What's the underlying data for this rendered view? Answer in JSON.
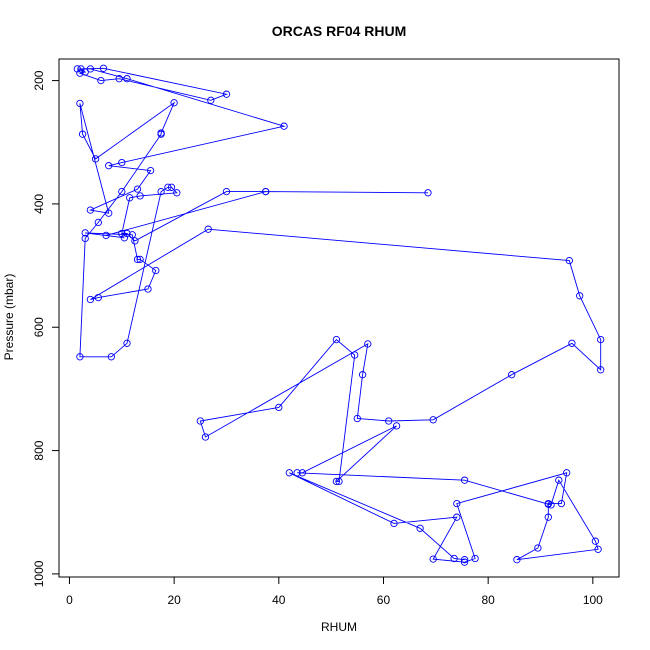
{
  "chart_data": {
    "type": "line",
    "title": "ORCAS RF04 RHUM",
    "xlabel": "RHUM",
    "ylabel": "Pressure (mbar)",
    "xlim": [
      -2,
      105
    ],
    "ylim": [
      1005,
      165
    ],
    "y_inverted": true,
    "markers": "open-circle",
    "grid": false,
    "color": "#0000ff",
    "x_ticks": [
      0,
      20,
      40,
      60,
      80,
      100
    ],
    "y_ticks": [
      200,
      400,
      600,
      800,
      1000
    ],
    "series": [
      {
        "x": [
          1.5,
          6.5,
          30,
          27,
          9.5,
          6,
          2,
          3,
          2.2,
          4,
          11,
          41,
          10,
          7.5,
          15.5,
          13,
          4,
          7.5,
          2,
          2.5,
          5,
          20,
          17.5,
          17.5,
          10,
          5.5,
          3,
          2,
          8,
          11,
          17.5,
          18.8,
          19.5,
          20.5,
          13.5,
          11.5,
          10,
          11,
          12.5,
          30,
          37.5,
          68.5,
          37.5,
          7,
          10.5,
          3,
          12,
          13,
          13.5,
          16.5,
          15,
          5.5,
          4,
          26.5,
          95.5,
          97.5,
          101.5,
          101.5,
          96,
          84.5,
          69.5,
          61,
          55,
          56,
          57,
          26,
          25,
          40,
          51,
          54.5,
          51.5,
          51,
          62.5,
          44.5,
          43.5,
          75.5,
          91.5,
          92,
          93.5,
          100.5,
          101,
          85.5,
          89.5,
          91.5,
          91.5,
          94,
          95,
          74,
          77.5,
          75.5,
          69.5,
          74,
          62,
          42,
          67,
          73.5,
          75.5
        ],
        "y": [
          181,
          180,
          222,
          232,
          197,
          200,
          188,
          186,
          181,
          181,
          197,
          274,
          333,
          338,
          346,
          376,
          410,
          415,
          237,
          287,
          327,
          236,
          285,
          287,
          380,
          430,
          456,
          648,
          648,
          626,
          380,
          373,
          373,
          382,
          387,
          390,
          448,
          448,
          460,
          380,
          380,
          382,
          380,
          451,
          455,
          447,
          450,
          490,
          490,
          508,
          538,
          552,
          555,
          441,
          492,
          549,
          620,
          669,
          626,
          677,
          750,
          752,
          748,
          677,
          627,
          778,
          752,
          730,
          620,
          645,
          850,
          850,
          760,
          836,
          836,
          848,
          887,
          888,
          848,
          947,
          960,
          977,
          958,
          908,
          886,
          886,
          836,
          886,
          975,
          981,
          976,
          908,
          918,
          836,
          926,
          975,
          977
        ]
      }
    ]
  }
}
